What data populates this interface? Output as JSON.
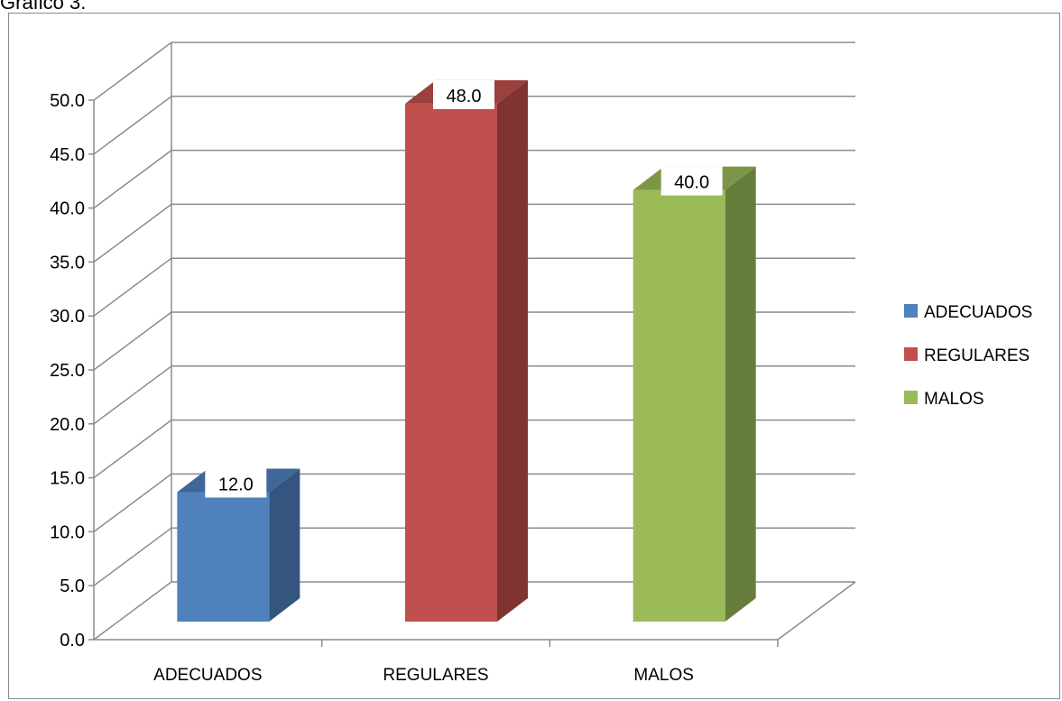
{
  "page": {
    "heading": "Grafico 3."
  },
  "chart_data": {
    "type": "bar",
    "categories": [
      "ADECUADOS",
      "REGULARES",
      "MALOS"
    ],
    "values": [
      12.0,
      48.0,
      40.0
    ],
    "data_labels": [
      "12.0",
      "48.0",
      "40.0"
    ],
    "ylim": [
      0,
      50
    ],
    "ytick_labels": [
      "0.0",
      "5.0",
      "10.0",
      "15.0",
      "20.0",
      "25.0",
      "30.0",
      "35.0",
      "40.0",
      "45.0",
      "50.0"
    ],
    "grid": true,
    "three_d": true,
    "legend": {
      "placement": "right",
      "entries": [
        "ADECUADOS",
        "REGULARES",
        "MALOS"
      ]
    },
    "colors": {
      "bars": [
        "#4F81BD",
        "#C0504D",
        "#9BBB59"
      ],
      "bar_sides": [
        "#34557F",
        "#7F3432",
        "#677D3B"
      ],
      "bar_tops": [
        "#3F6797",
        "#9A403E",
        "#7C9647"
      ],
      "grid": "#8C8C8C"
    }
  }
}
